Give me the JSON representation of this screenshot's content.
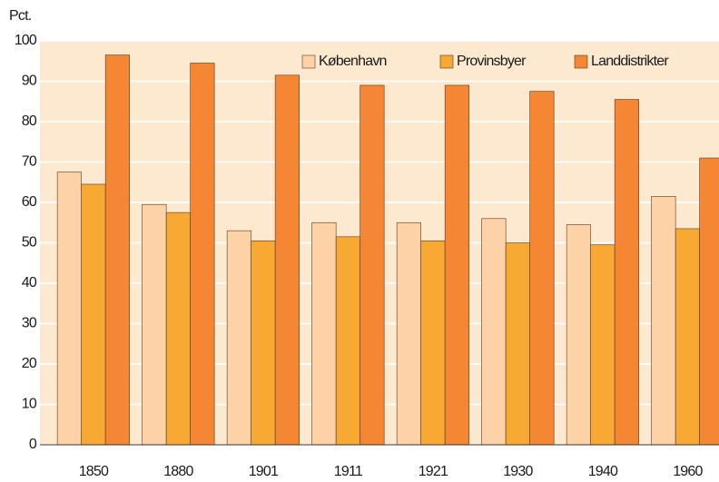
{
  "chart_data": {
    "type": "bar",
    "y_label": "Pct.",
    "categories": [
      "1850",
      "1880",
      "1901",
      "1911",
      "1921",
      "1930",
      "1940",
      "1960"
    ],
    "series": [
      {
        "name": "København",
        "color": "#fdd2a6",
        "values": [
          67.5,
          59.5,
          53,
          55,
          55,
          56,
          54.5,
          61.5
        ]
      },
      {
        "name": "Provinsbyer",
        "color": "#f8a934",
        "values": [
          64.5,
          57.5,
          50.5,
          51.5,
          50.5,
          50,
          49.5,
          53.5
        ]
      },
      {
        "name": "Landdistrikter",
        "color": "#f58634",
        "values": [
          96.5,
          94.5,
          91.5,
          89,
          89,
          87.5,
          85.5,
          71
        ]
      }
    ],
    "ylim": [
      0,
      100
    ],
    "yticks": [
      0,
      10,
      20,
      30,
      40,
      50,
      60,
      70,
      80,
      90,
      100
    ],
    "grid": true,
    "legend": "upper right"
  }
}
